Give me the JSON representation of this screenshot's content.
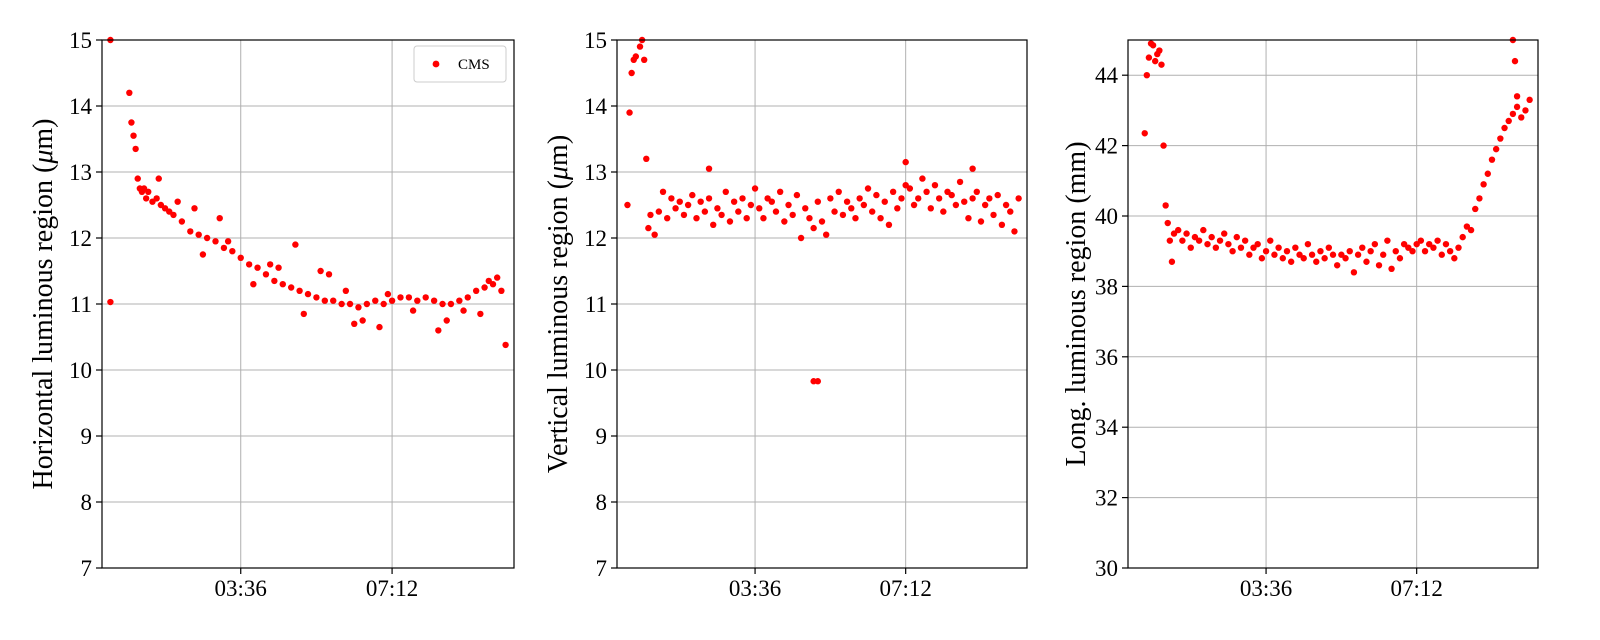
{
  "chart_data": [
    {
      "type": "scatter",
      "ylabel": "Horizontal luminous region ($\\mu$m)",
      "ylim": [
        7,
        15
      ],
      "yticks": [
        "7",
        "8",
        "9",
        "10",
        "11",
        "12",
        "13",
        "14",
        "15"
      ],
      "xticks": [
        {
          "value": 3.6,
          "label": "03:36"
        },
        {
          "value": 7.2,
          "label": "07:12"
        }
      ],
      "xlim": [
        0.3,
        10.1
      ],
      "grid": true,
      "legend": {
        "placement": "top-right",
        "entries": [
          "CMS"
        ]
      },
      "color": "#ff0000",
      "series": [
        {
          "name": "CMS",
          "x": [
            0.5,
            0.5,
            0.95,
            1.0,
            1.05,
            1.1,
            1.15,
            1.2,
            1.25,
            1.3,
            1.35,
            1.4,
            1.5,
            1.6,
            1.7,
            1.8,
            1.9,
            2.0,
            2.2,
            2.4,
            2.6,
            2.8,
            3.0,
            3.2,
            3.4,
            3.6,
            3.8,
            4.0,
            4.2,
            4.4,
            4.6,
            4.8,
            5.0,
            5.2,
            5.4,
            5.6,
            5.8,
            6.0,
            6.2,
            6.4,
            6.6,
            6.8,
            7.0,
            7.2,
            7.4,
            7.6,
            7.8,
            8.0,
            8.2,
            8.4,
            8.6,
            8.8,
            9.0,
            9.2,
            9.4,
            9.6,
            9.8,
            9.9,
            9.3,
            8.5,
            6.9,
            6.3,
            5.5,
            4.9,
            4.3,
            3.1,
            2.5,
            1.65,
            2.1,
            2.7,
            3.3,
            3.9,
            4.5,
            5.1,
            5.7,
            6.1,
            6.5,
            7.1,
            7.7,
            8.3,
            8.9,
            9.5,
            9.7
          ],
          "y": [
            15.0,
            11.03,
            14.2,
            13.75,
            13.55,
            13.35,
            12.9,
            12.75,
            12.7,
            12.75,
            12.6,
            12.7,
            12.55,
            12.6,
            12.5,
            12.45,
            12.4,
            12.35,
            12.25,
            12.1,
            12.05,
            12.0,
            11.95,
            11.85,
            11.8,
            11.7,
            11.6,
            11.55,
            11.45,
            11.35,
            11.3,
            11.25,
            11.2,
            11.15,
            11.1,
            11.05,
            11.05,
            11.0,
            11.0,
            10.95,
            11.0,
            11.05,
            11.0,
            11.05,
            11.1,
            11.1,
            11.05,
            11.1,
            11.05,
            11.0,
            11.0,
            11.05,
            11.1,
            11.2,
            11.25,
            11.3,
            11.2,
            10.38,
            10.85,
            10.75,
            10.65,
            10.7,
            11.5,
            11.9,
            11.6,
            12.3,
            12.45,
            12.9,
            12.55,
            11.75,
            11.95,
            11.3,
            11.55,
            10.85,
            11.45,
            11.2,
            10.75,
            11.15,
            10.9,
            10.6,
            10.9,
            11.35,
            11.4
          ]
        }
      ]
    },
    {
      "type": "scatter",
      "ylabel": "Vertical luminous region ($\\mu$m)",
      "ylim": [
        7,
        15
      ],
      "yticks": [
        "7",
        "8",
        "9",
        "10",
        "11",
        "12",
        "13",
        "14",
        "15"
      ],
      "xticks": [
        {
          "value": 3.6,
          "label": "03:36"
        },
        {
          "value": 7.2,
          "label": "07:12"
        }
      ],
      "xlim": [
        0.3,
        10.1
      ],
      "grid": true,
      "color": "#ff0000",
      "series": [
        {
          "name": "CMS",
          "x": [
            0.55,
            0.6,
            0.65,
            0.7,
            0.75,
            0.85,
            0.9,
            0.95,
            1.0,
            1.05,
            1.1,
            1.2,
            1.3,
            1.4,
            1.5,
            1.6,
            1.7,
            1.8,
            1.9,
            2.0,
            2.1,
            2.2,
            2.3,
            2.4,
            2.5,
            2.6,
            2.7,
            2.8,
            2.9,
            3.0,
            3.1,
            3.2,
            3.3,
            3.4,
            3.5,
            3.6,
            3.7,
            3.8,
            3.9,
            4.0,
            4.1,
            4.2,
            4.3,
            4.4,
            4.5,
            4.6,
            4.7,
            4.8,
            4.9,
            5.0,
            5.1,
            5.2,
            5.3,
            5.4,
            5.5,
            5.6,
            5.7,
            5.8,
            5.9,
            6.0,
            6.1,
            6.2,
            6.3,
            6.4,
            6.5,
            6.6,
            6.7,
            6.8,
            6.9,
            7.0,
            7.1,
            7.2,
            7.3,
            7.4,
            7.5,
            7.6,
            7.7,
            7.8,
            7.9,
            8.0,
            8.1,
            8.2,
            8.3,
            8.4,
            8.5,
            8.6,
            8.7,
            8.8,
            8.9,
            9.0,
            9.1,
            9.2,
            9.3,
            9.4,
            9.5,
            9.6,
            9.7,
            9.8,
            9.9,
            5.0,
            5.1,
            2.5,
            7.2,
            8.8
          ],
          "y": [
            12.5,
            13.9,
            14.5,
            14.7,
            14.75,
            14.9,
            15.0,
            14.7,
            13.2,
            12.15,
            12.35,
            12.05,
            12.4,
            12.7,
            12.3,
            12.6,
            12.45,
            12.55,
            12.35,
            12.5,
            12.65,
            12.3,
            12.55,
            12.4,
            12.6,
            12.2,
            12.45,
            12.35,
            12.7,
            12.25,
            12.55,
            12.4,
            12.6,
            12.3,
            12.5,
            12.75,
            12.45,
            12.3,
            12.6,
            12.55,
            12.4,
            12.7,
            12.25,
            12.5,
            12.35,
            12.65,
            12.0,
            12.45,
            12.3,
            12.15,
            12.55,
            12.25,
            12.05,
            12.6,
            12.4,
            12.7,
            12.35,
            12.55,
            12.45,
            12.3,
            12.6,
            12.5,
            12.75,
            12.4,
            12.65,
            12.3,
            12.55,
            12.2,
            12.7,
            12.45,
            12.6,
            12.8,
            12.75,
            12.5,
            12.6,
            12.9,
            12.7,
            12.45,
            12.8,
            12.6,
            12.4,
            12.7,
            12.65,
            12.5,
            12.85,
            12.55,
            12.3,
            12.6,
            12.7,
            12.25,
            12.5,
            12.6,
            12.35,
            12.65,
            12.2,
            12.5,
            12.4,
            12.1,
            12.6,
            9.83,
            9.83,
            13.05,
            13.15,
            13.05
          ]
        }
      ]
    },
    {
      "type": "scatter",
      "ylabel": "Long. luminous region (mm)",
      "ylim": [
        30,
        45
      ],
      "yticks": [
        "30",
        "32",
        "34",
        "36",
        "38",
        "40",
        "42",
        "44"
      ],
      "xticks": [
        {
          "value": 3.6,
          "label": "03:36"
        },
        {
          "value": 7.2,
          "label": "07:12"
        }
      ],
      "xlim": [
        0.3,
        10.1
      ],
      "grid": true,
      "color": "#ff0000",
      "series": [
        {
          "name": "CMS",
          "x": [
            0.7,
            0.75,
            0.8,
            0.85,
            0.9,
            0.95,
            1.0,
            1.05,
            1.1,
            1.15,
            1.2,
            1.25,
            1.3,
            1.35,
            1.4,
            1.5,
            1.6,
            1.7,
            1.8,
            1.9,
            2.0,
            2.1,
            2.2,
            2.3,
            2.4,
            2.5,
            2.6,
            2.7,
            2.8,
            2.9,
            3.0,
            3.1,
            3.2,
            3.3,
            3.4,
            3.5,
            3.6,
            3.7,
            3.8,
            3.9,
            4.0,
            4.1,
            4.2,
            4.3,
            4.4,
            4.5,
            4.6,
            4.7,
            4.8,
            4.9,
            5.0,
            5.1,
            5.2,
            5.3,
            5.4,
            5.5,
            5.6,
            5.7,
            5.8,
            5.9,
            6.0,
            6.1,
            6.2,
            6.3,
            6.4,
            6.5,
            6.6,
            6.7,
            6.8,
            6.9,
            7.0,
            7.1,
            7.2,
            7.3,
            7.4,
            7.5,
            7.6,
            7.7,
            7.8,
            7.9,
            8.0,
            8.1,
            8.2,
            8.3,
            8.4,
            8.5,
            8.6,
            8.7,
            8.8,
            8.9,
            9.0,
            9.1,
            9.2,
            9.3,
            9.4,
            9.5,
            9.6,
            9.7,
            9.8,
            9.9,
            9.5,
            9.55,
            9.6
          ],
          "y": [
            42.35,
            44.0,
            44.5,
            44.9,
            44.85,
            44.4,
            44.6,
            44.7,
            44.3,
            42.0,
            40.3,
            39.8,
            39.3,
            38.7,
            39.5,
            39.6,
            39.3,
            39.5,
            39.1,
            39.4,
            39.3,
            39.6,
            39.2,
            39.4,
            39.1,
            39.3,
            39.5,
            39.2,
            39.0,
            39.4,
            39.1,
            39.3,
            38.9,
            39.1,
            39.2,
            38.8,
            39.0,
            39.3,
            38.9,
            39.1,
            38.8,
            39.0,
            38.7,
            39.1,
            38.9,
            38.8,
            39.2,
            38.9,
            38.7,
            39.0,
            38.8,
            39.1,
            38.9,
            38.6,
            38.9,
            38.8,
            39.0,
            38.4,
            38.9,
            39.1,
            38.7,
            39.0,
            39.2,
            38.6,
            38.9,
            39.3,
            38.5,
            39.0,
            38.8,
            39.2,
            39.1,
            39.0,
            39.2,
            39.3,
            39.0,
            39.2,
            39.1,
            39.3,
            38.9,
            39.2,
            39.0,
            38.8,
            39.1,
            39.4,
            39.7,
            39.6,
            40.2,
            40.5,
            40.9,
            41.2,
            41.6,
            41.9,
            42.2,
            42.5,
            42.7,
            42.9,
            43.1,
            42.8,
            43.0,
            43.3,
            45.0,
            44.4,
            43.4
          ]
        }
      ]
    }
  ]
}
